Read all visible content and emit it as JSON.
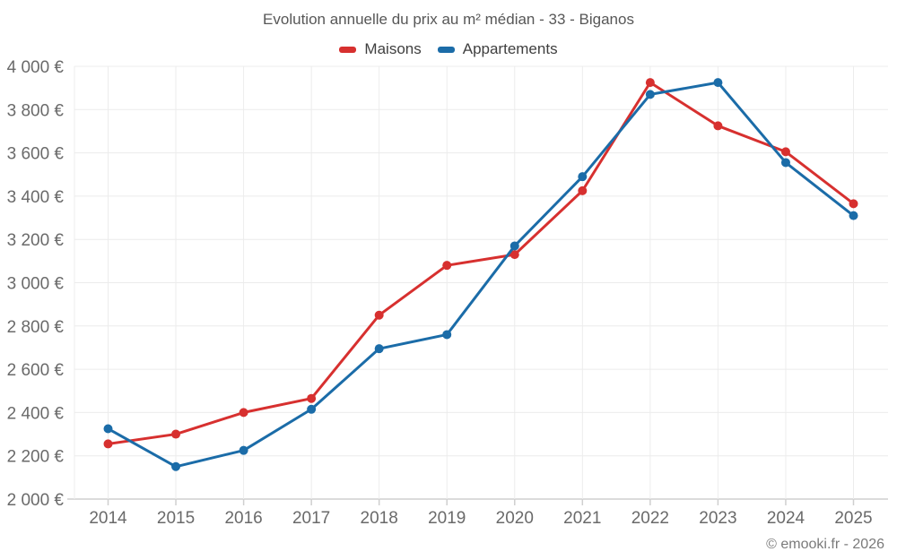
{
  "footer": {
    "credit": "© emooki.fr - 2026"
  },
  "colors": {
    "background": "#ffffff",
    "title": "#575757",
    "legend_label": "#3f3f3f",
    "tick_label": "#6a6a6a",
    "grid": "#ececec",
    "axis_line": "#cfcfcf",
    "credit": "#7a7a7a",
    "maisons_red": "#d7302f",
    "appartements_blue": "#1b6ca8"
  },
  "chart_data": {
    "type": "line",
    "title": "Evolution annuelle du prix au m² médian - 33 - Biganos",
    "xlabel": "",
    "ylabel": "",
    "categories": [
      "2014",
      "2015",
      "2016",
      "2017",
      "2018",
      "2019",
      "2020",
      "2021",
      "2022",
      "2023",
      "2024",
      "2025"
    ],
    "series": [
      {
        "name": "Maisons",
        "color": "#d7302f",
        "values": [
          2255,
          2300,
          2400,
          2465,
          2850,
          3080,
          3130,
          3425,
          3925,
          3725,
          3605,
          3365
        ]
      },
      {
        "name": "Appartements",
        "color": "#1b6ca8",
        "values": [
          2325,
          2150,
          2225,
          2415,
          2695,
          2760,
          3170,
          3490,
          3870,
          3925,
          3555,
          3310
        ]
      }
    ],
    "ylim": [
      2000,
      4000
    ],
    "y_ticks": [
      2000,
      2200,
      2400,
      2600,
      2800,
      3000,
      3200,
      3400,
      3600,
      3800,
      4000
    ],
    "y_tick_labels": [
      "2 000 €",
      "2 200 €",
      "2 400 €",
      "2 600 €",
      "2 800 €",
      "3 000 €",
      "3 200 €",
      "3 400 €",
      "3 600 €",
      "3 800 €",
      "4 000 €"
    ],
    "grid": true,
    "legend_position": "top",
    "marker_radius": 5,
    "line_width": 3
  }
}
